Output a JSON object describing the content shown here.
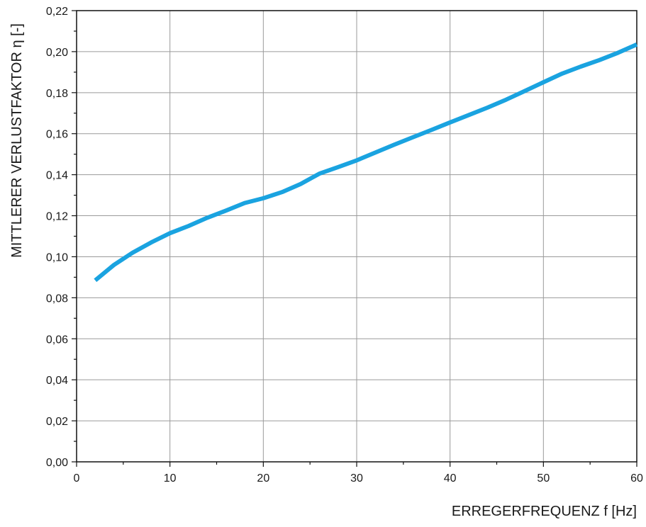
{
  "chart_data": {
    "type": "line",
    "xlabel": "ERREGERFREQUENZ f [Hz]",
    "ylabel": "MITTLERER VERLUSTFAKTOR η [-]",
    "xlim": [
      0,
      60
    ],
    "ylim": [
      0,
      0.22
    ],
    "x_ticks": [
      0,
      10,
      20,
      30,
      40,
      50,
      60
    ],
    "x_tick_labels": [
      "0",
      "10",
      "20",
      "30",
      "40",
      "50",
      "60"
    ],
    "y_ticks": [
      0,
      0.02,
      0.04,
      0.06,
      0.08,
      0.1,
      0.12,
      0.14,
      0.16,
      0.18,
      0.2,
      0.22
    ],
    "y_tick_labels": [
      "0,00",
      "0,02",
      "0,04",
      "0,06",
      "0,08",
      "0,10",
      "0,12",
      "0,14",
      "0,16",
      "0,18",
      "0,20",
      "0,22"
    ],
    "grid": true,
    "line_color": "#1aa3e0",
    "series": [
      {
        "x": [
          2,
          4,
          6,
          8,
          10,
          12,
          14,
          16,
          18,
          20,
          22,
          24,
          26,
          28,
          30,
          32,
          34,
          36,
          38,
          40,
          42,
          44,
          46,
          48,
          50,
          52,
          54,
          56,
          58,
          60
        ],
        "values": [
          0.0885,
          0.096,
          0.102,
          0.107,
          0.1115,
          0.115,
          0.119,
          0.1225,
          0.1262,
          0.1285,
          0.1315,
          0.1355,
          0.1405,
          0.1437,
          0.147,
          0.1508,
          0.1546,
          0.1582,
          0.1618,
          0.1655,
          0.1691,
          0.1727,
          0.1766,
          0.1808,
          0.1851,
          0.1893,
          0.1927,
          0.1959,
          0.1995,
          0.2035
        ]
      }
    ]
  }
}
